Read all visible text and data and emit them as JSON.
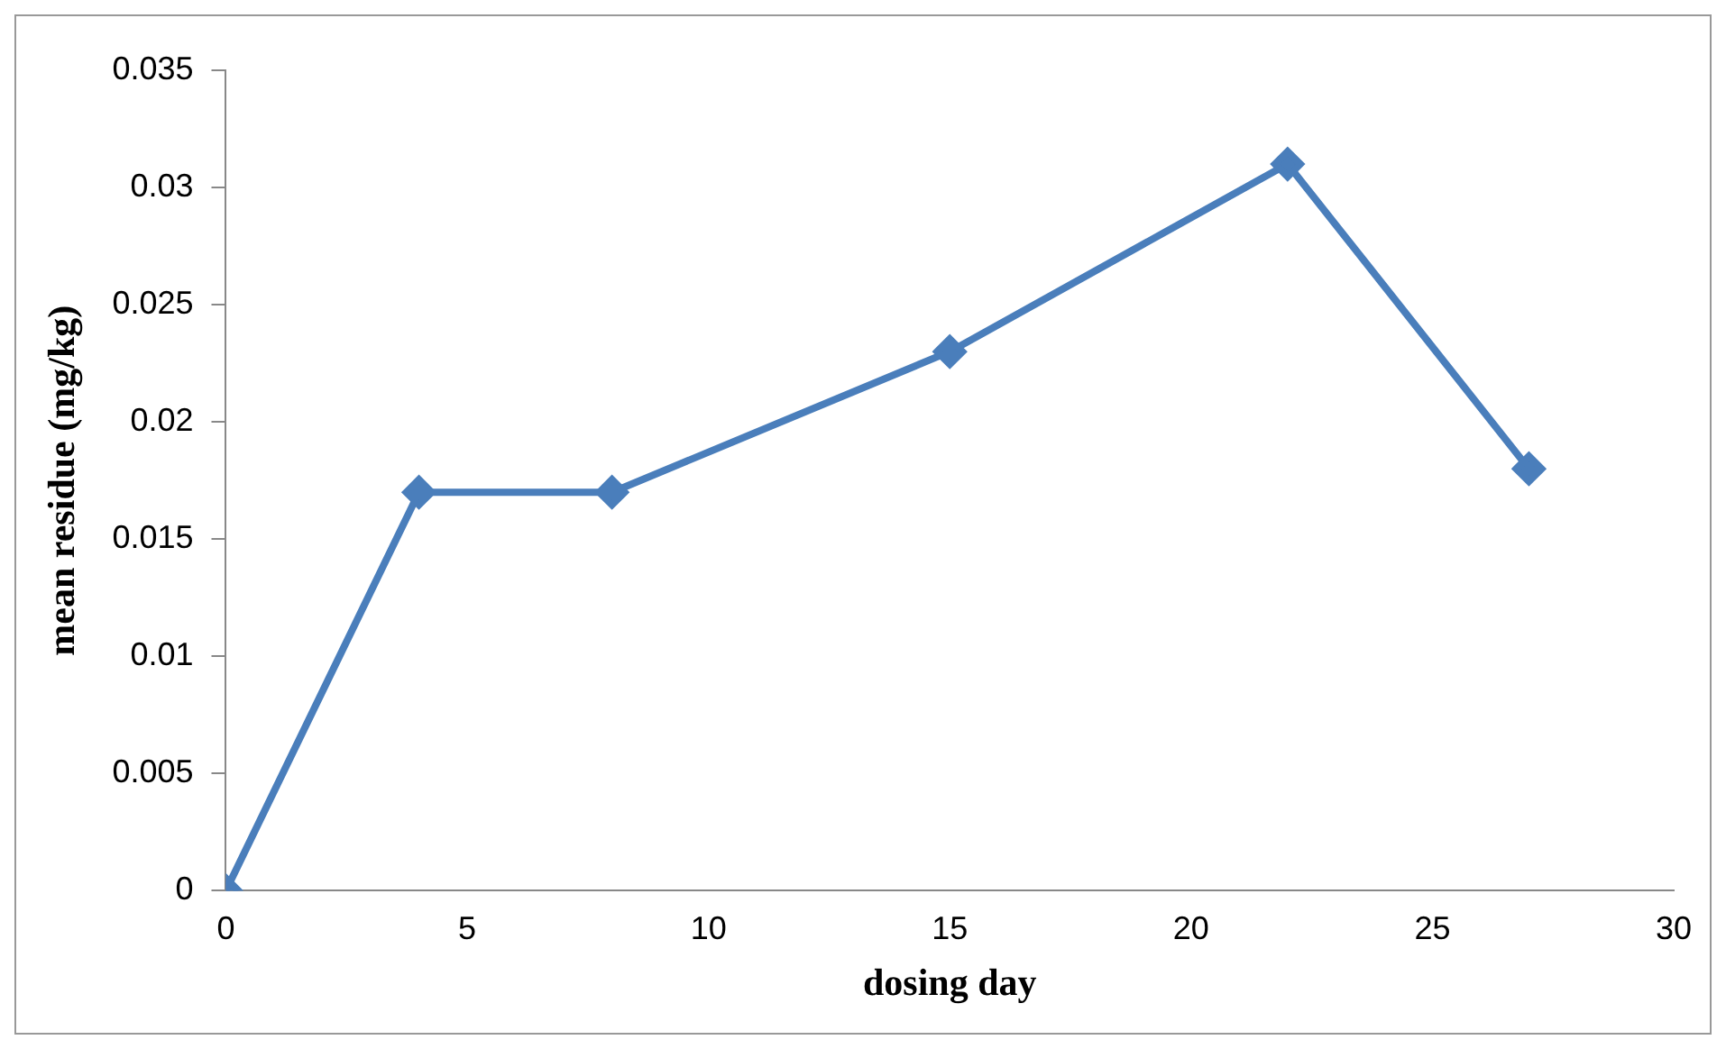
{
  "chart_data": {
    "type": "line",
    "xlabel": "dosing day",
    "ylabel": "mean residue (mg/kg)",
    "x": [
      0,
      4,
      8,
      15,
      22,
      27
    ],
    "series": [
      {
        "color": "#4a7ebb",
        "values": [
          0,
          0.017,
          0.017,
          0.023,
          0.031,
          0.018
        ]
      }
    ],
    "xlim": [
      0,
      30
    ],
    "xticks": [
      0,
      5,
      10,
      15,
      20,
      25,
      30
    ],
    "ylim": [
      0,
      0.035
    ],
    "yticks": [
      0,
      0.005,
      0.01,
      0.015,
      0.02,
      0.025,
      0.03,
      0.035
    ],
    "grid": false,
    "legend": false,
    "marker": "diamond",
    "line_style": "solid"
  }
}
